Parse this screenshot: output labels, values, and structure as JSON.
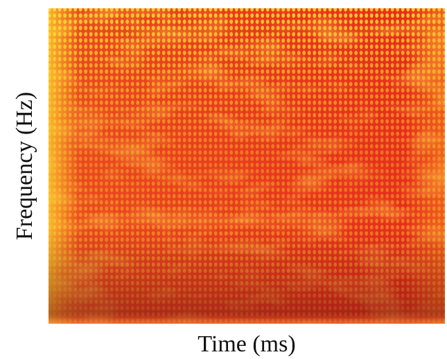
{
  "chart_data": {
    "type": "heatmap",
    "x_label": "Time (ms)",
    "y_label": "Frequency (Hz)"
  }
}
